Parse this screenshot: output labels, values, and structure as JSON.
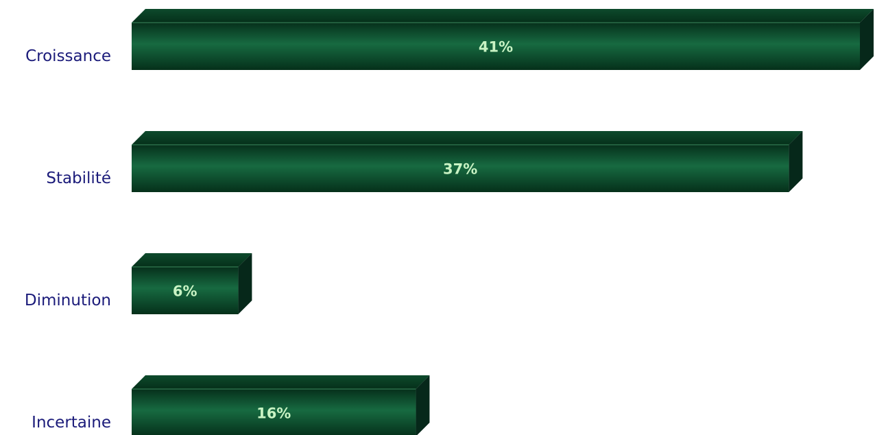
{
  "chart_data": {
    "type": "bar",
    "orientation": "horizontal",
    "categories": [
      "Croissance",
      "Stabilité",
      "Diminution",
      "Incertaine"
    ],
    "values": [
      41,
      37,
      6,
      16
    ],
    "value_labels": [
      "41%",
      "37%",
      "6%",
      "16%"
    ],
    "color": "#0f5a35"
  }
}
